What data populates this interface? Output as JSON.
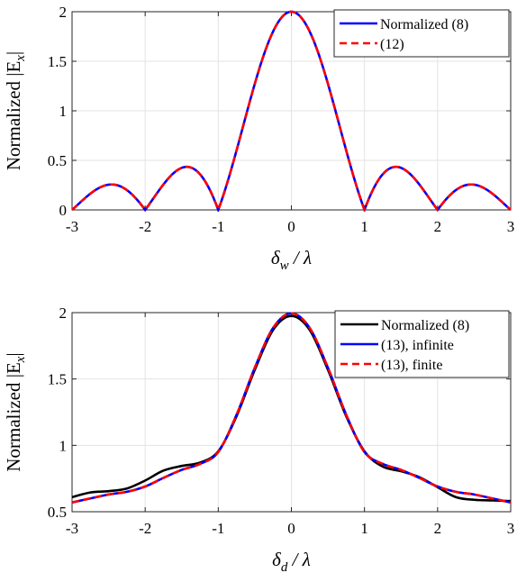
{
  "chart_data": [
    {
      "type": "line",
      "xlabel": "δ_w / λ",
      "xlabel_main": "δ",
      "xlabel_sub": "w",
      "xlabel_rest": " / λ",
      "ylabel": "Normalized |E_x|",
      "ylabel_main": "Normalized |E",
      "ylabel_sub": "x",
      "ylabel_end": "|",
      "xlim": [
        -3,
        3
      ],
      "ylim": [
        0,
        2
      ],
      "xticks": [
        -3,
        -2,
        -1,
        0,
        1,
        2,
        3
      ],
      "xtick_labels": [
        "-3",
        "-2",
        "-1",
        "0",
        "1",
        "2",
        "3"
      ],
      "yticks": [
        0,
        0.5,
        1,
        1.5,
        2
      ],
      "ytick_labels": [
        "0",
        "0.5",
        "1",
        "1.5",
        "2"
      ],
      "grid": true,
      "legend_position": "top-right",
      "series": [
        {
          "name": "Normalized (8)",
          "color": "#0000ff",
          "style": "solid",
          "formula": "abs-sinc",
          "nulls": 0.5,
          "peak": 2
        },
        {
          "name": "(12)",
          "color": "#ff0000",
          "style": "dashed",
          "formula": "abs-sinc",
          "nulls": 0.5,
          "peak": 2
        }
      ]
    },
    {
      "type": "line",
      "xlabel": "δ_d / λ",
      "xlabel_main": "δ",
      "xlabel_sub": "d",
      "xlabel_rest": " / λ",
      "ylabel": "Normalized |E_x|",
      "ylabel_main": "Normalized |E",
      "ylabel_sub": "x",
      "ylabel_end": "|",
      "xlim": [
        -3,
        3
      ],
      "ylim": [
        0.5,
        2
      ],
      "xticks": [
        -3,
        -2,
        -1,
        0,
        1,
        2,
        3
      ],
      "xtick_labels": [
        "-3",
        "-2",
        "-1",
        "0",
        "1",
        "2",
        "3"
      ],
      "yticks": [
        0.5,
        1,
        1.5,
        2
      ],
      "ytick_labels": [
        "0.5",
        "1",
        "1.5",
        "2"
      ],
      "grid": true,
      "legend_position": "top-right",
      "series": [
        {
          "name": "Normalized (8)",
          "color": "#000000",
          "style": "solid",
          "x": [
            -3,
            -2.75,
            -2.5,
            -2.25,
            -2,
            -1.75,
            -1.5,
            -1.25,
            -1,
            -0.75,
            -0.5,
            -0.25,
            0,
            0.25,
            0.5,
            0.75,
            1,
            1.25,
            1.5,
            1.75,
            2,
            2.25,
            2.5,
            2.75,
            3
          ],
          "y": [
            0.61,
            0.645,
            0.655,
            0.675,
            0.735,
            0.81,
            0.845,
            0.87,
            0.955,
            1.22,
            1.57,
            1.87,
            1.975,
            1.87,
            1.57,
            1.22,
            0.955,
            0.84,
            0.805,
            0.76,
            0.685,
            0.61,
            0.59,
            0.585,
            0.58
          ]
        },
        {
          "name": "(13), infinite",
          "color": "#0000ff",
          "style": "solid",
          "x": [
            -3,
            -2.75,
            -2.5,
            -2.25,
            -2,
            -1.75,
            -1.5,
            -1.25,
            -1,
            -0.75,
            -0.5,
            -0.25,
            0,
            0.25,
            0.5,
            0.75,
            1,
            1.25,
            1.5,
            1.75,
            2,
            2.25,
            2.5,
            2.75,
            3
          ],
          "y": [
            0.57,
            0.6,
            0.63,
            0.65,
            0.69,
            0.755,
            0.815,
            0.86,
            0.95,
            1.23,
            1.585,
            1.885,
            1.995,
            1.885,
            1.585,
            1.23,
            0.95,
            0.86,
            0.815,
            0.755,
            0.69,
            0.65,
            0.63,
            0.6,
            0.57
          ]
        },
        {
          "name": "(13), finite",
          "color": "#ff0000",
          "style": "dashed",
          "x": [
            -3,
            -2.75,
            -2.5,
            -2.25,
            -2,
            -1.75,
            -1.5,
            -1.25,
            -1,
            -0.75,
            -0.5,
            -0.25,
            0,
            0.25,
            0.5,
            0.75,
            1,
            1.25,
            1.5,
            1.75,
            2,
            2.25,
            2.5,
            2.75,
            3
          ],
          "y": [
            0.57,
            0.6,
            0.63,
            0.65,
            0.69,
            0.755,
            0.815,
            0.86,
            0.95,
            1.23,
            1.585,
            1.885,
            1.995,
            1.885,
            1.585,
            1.23,
            0.95,
            0.86,
            0.815,
            0.755,
            0.69,
            0.65,
            0.63,
            0.6,
            0.57
          ]
        }
      ]
    }
  ]
}
